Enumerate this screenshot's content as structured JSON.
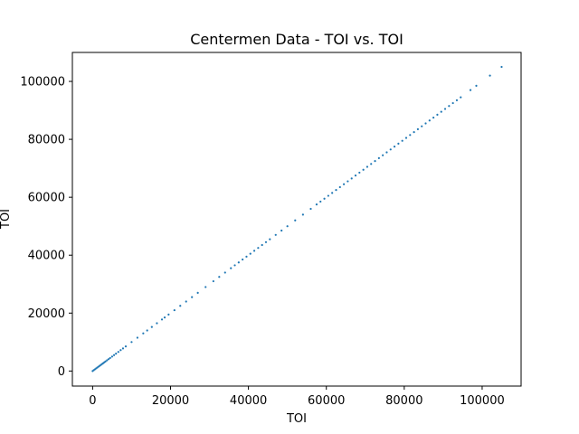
{
  "chart_data": {
    "type": "scatter",
    "title": "Centermen Data - TOI vs. TOI",
    "xlabel": "TOI",
    "ylabel": "TOI",
    "xlim": [
      -5200,
      110000
    ],
    "ylim": [
      -5200,
      110000
    ],
    "x_ticks": [
      0,
      20000,
      40000,
      60000,
      80000,
      100000
    ],
    "y_ticks": [
      0,
      20000,
      40000,
      60000,
      80000,
      100000
    ],
    "x_tick_labels": [
      "0",
      "20000",
      "40000",
      "60000",
      "80000",
      "100000"
    ],
    "y_tick_labels": [
      "0",
      "20000",
      "40000",
      "60000",
      "80000",
      "100000"
    ],
    "grid": false,
    "legend": "none",
    "marker_color": "#1f77b4",
    "series": [
      {
        "x": [
          0,
          300,
          600,
          900,
          1200,
          1500,
          1800,
          2100,
          2400,
          2700,
          3000,
          3300,
          3700,
          4100,
          4500,
          5000,
          5500,
          6000,
          6600,
          7200,
          7800,
          8500,
          10000,
          11500,
          13000,
          14000,
          15200,
          16500,
          17800,
          18500,
          19500,
          21000,
          22500,
          24000,
          25500,
          27000,
          29000,
          31000,
          32500,
          34000,
          35500,
          36500,
          37500,
          38500,
          39500,
          40500,
          41500,
          42500,
          43500,
          44500,
          45500,
          47000,
          48500,
          50000,
          52000,
          54000,
          56000,
          57500,
          58500,
          59500,
          60500,
          61500,
          62500,
          63500,
          64500,
          65500,
          66500,
          67500,
          68500,
          69500,
          70500,
          71500,
          72500,
          73500,
          74500,
          75500,
          76500,
          77500,
          78500,
          79500,
          80500,
          81500,
          82500,
          83500,
          84500,
          85500,
          86500,
          87500,
          88500,
          89500,
          90500,
          91500,
          92500,
          93500,
          94500,
          97000,
          98500,
          102000,
          105000
        ],
        "y": [
          0,
          300,
          600,
          900,
          1200,
          1500,
          1800,
          2100,
          2400,
          2700,
          3000,
          3300,
          3700,
          4100,
          4500,
          5000,
          5500,
          6000,
          6600,
          7200,
          7800,
          8500,
          10000,
          11500,
          13000,
          14000,
          15200,
          16500,
          17800,
          18500,
          19500,
          21000,
          22500,
          24000,
          25500,
          27000,
          29000,
          31000,
          32500,
          34000,
          35500,
          36500,
          37500,
          38500,
          39500,
          40500,
          41500,
          42500,
          43500,
          44500,
          45500,
          47000,
          48500,
          50000,
          52000,
          54000,
          56000,
          57500,
          58500,
          59500,
          60500,
          61500,
          62500,
          63500,
          64500,
          65500,
          66500,
          67500,
          68500,
          69500,
          70500,
          71500,
          72500,
          73500,
          74500,
          75500,
          76500,
          77500,
          78500,
          79500,
          80500,
          81500,
          82500,
          83500,
          84500,
          85500,
          86500,
          87500,
          88500,
          89500,
          90500,
          91500,
          92500,
          93500,
          94500,
          97000,
          98500,
          102000,
          105000
        ]
      }
    ]
  }
}
